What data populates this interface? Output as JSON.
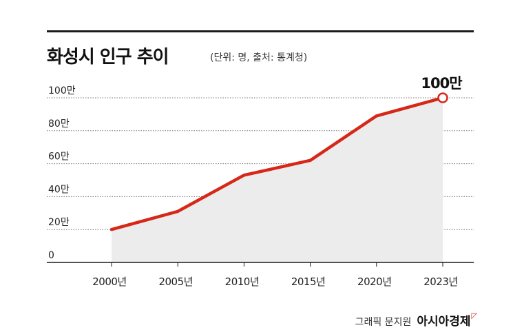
{
  "header": {
    "title": "화성시 인구 추이",
    "subtitle": "(단위: 명, 출처: 통계청)"
  },
  "footer": {
    "artist": "그래픽 문지원",
    "brand": "아시아경제"
  },
  "colors": {
    "line": "#d62718",
    "area": "#ececec",
    "grid": "#777777",
    "axis": "#1a1a1a"
  },
  "chart_data": {
    "type": "area",
    "title": "화성시 인구 추이",
    "subtitle": "(단위: 명, 출처: 통계청)",
    "x": [
      "2000년",
      "2005년",
      "2010년",
      "2015년",
      "2020년",
      "2023년"
    ],
    "y_ticks": [
      "0",
      "20만",
      "40만",
      "60만",
      "80만",
      "100만"
    ],
    "y_tick_values": [
      0,
      200000,
      400000,
      600000,
      800000,
      1000000
    ],
    "ylim": [
      0,
      1000000
    ],
    "series": [
      {
        "values": [
          200000,
          310000,
          530000,
          620000,
          890000,
          1000000
        ]
      }
    ],
    "annotation": {
      "index": 5,
      "text": "100만"
    },
    "grid": true,
    "legend": "none"
  }
}
